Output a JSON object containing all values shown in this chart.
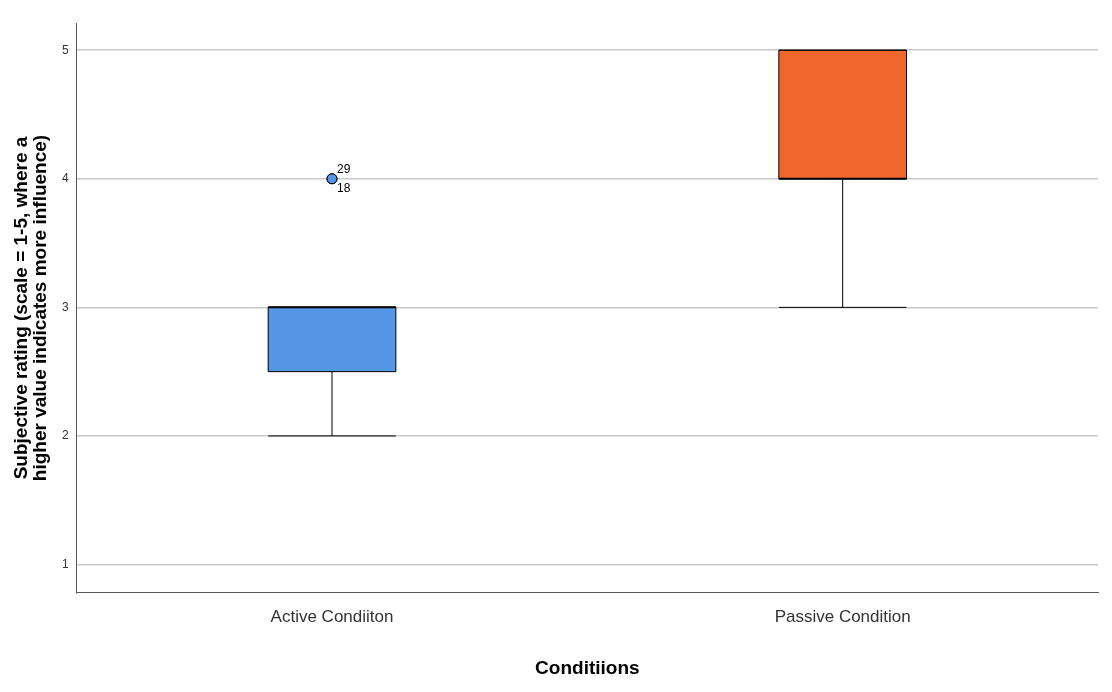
{
  "chart_data": {
    "type": "box",
    "xlabel": "Conditiions",
    "ylabel": "Subjective rating (scale = 1-5, where a higher value indicates more influence)",
    "categories": [
      "Active Condiiton",
      "Passive Condition"
    ],
    "colors": [
      "#5596e6",
      "#f0662b"
    ],
    "boxes": [
      {
        "low": 2,
        "q1": 2.5,
        "median": 3,
        "q3": 3,
        "high": 3,
        "outliers": [
          4,
          4
        ]
      },
      {
        "low": 3,
        "q1": 4,
        "median": 4,
        "q3": 5,
        "high": 5
      }
    ],
    "ylim": [
      0.78,
      5.21
    ],
    "yticks": [
      1,
      2,
      3,
      4,
      5
    ],
    "grid": "y",
    "legend": false,
    "annotations": [
      "29",
      "18"
    ]
  }
}
